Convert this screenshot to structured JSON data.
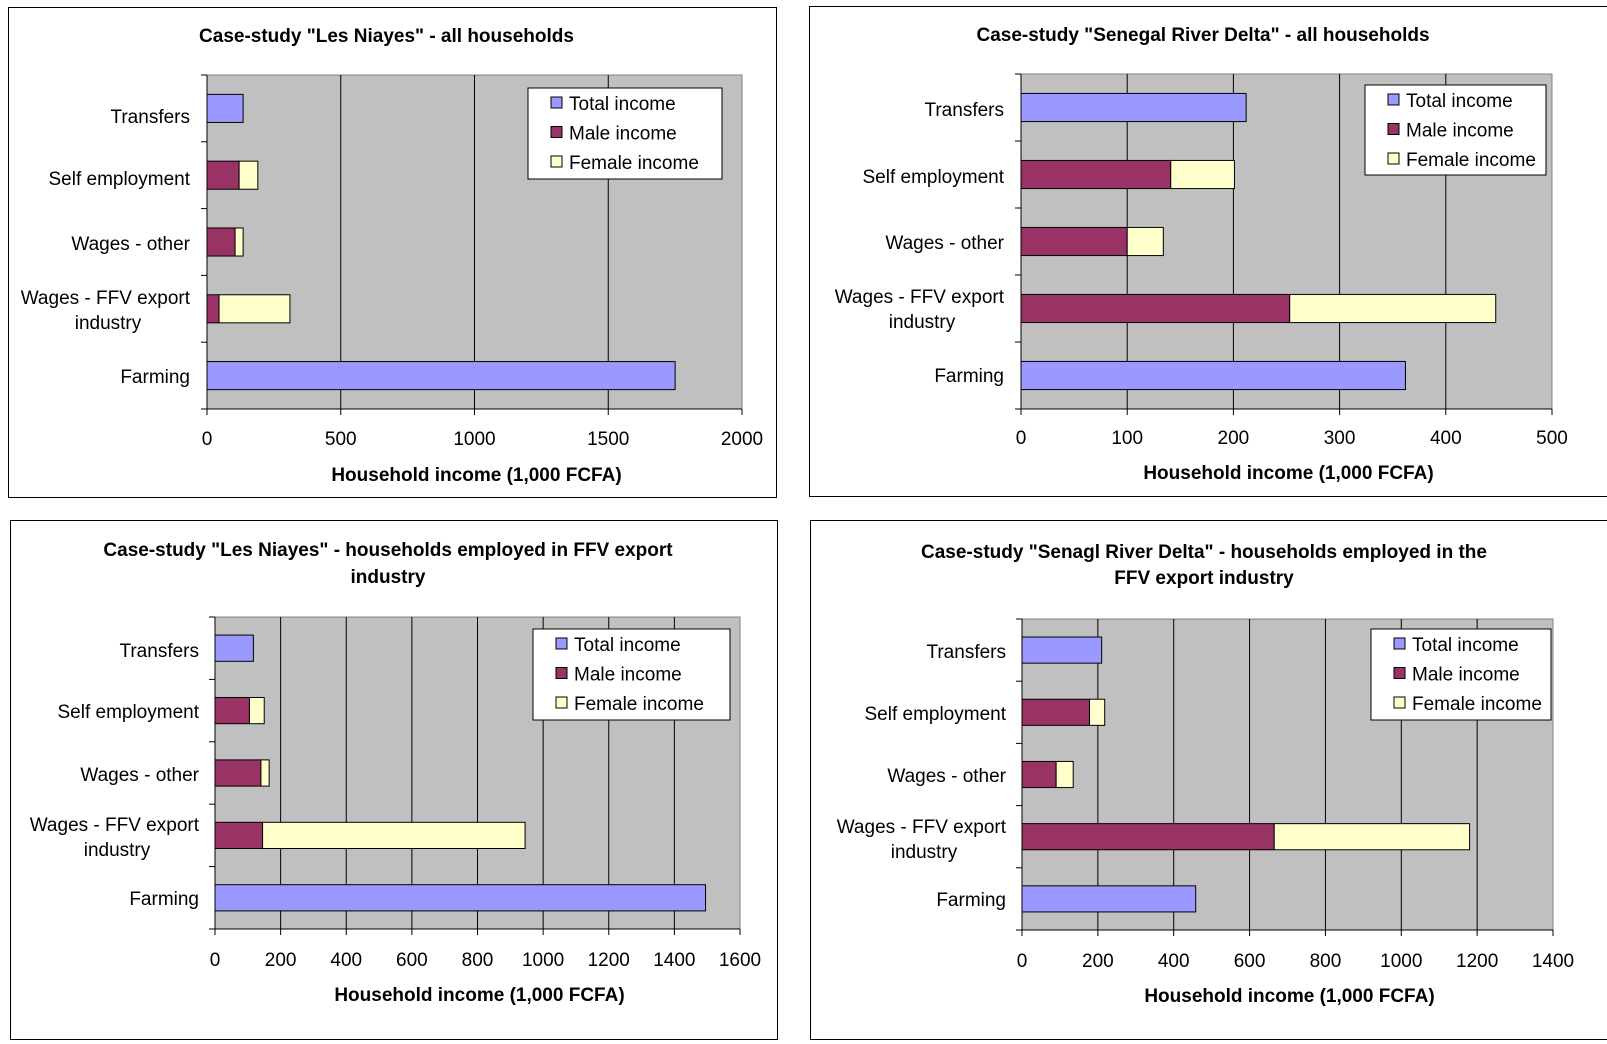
{
  "colors": {
    "plot_bg": "#c0c0c0",
    "gridline": "#000000",
    "total_income": "#9999ff",
    "male_income": "#993366",
    "female_income": "#ffffcc"
  },
  "chart_data": [
    {
      "type": "bar",
      "orientation": "horizontal",
      "stacked": true,
      "title": "Case-study \"Les Niayes\" - all households",
      "xlabel": "Household income (1,000 FCFA)",
      "ylabel": "",
      "xlim": [
        0,
        2000
      ],
      "xticks": [
        "0",
        "500",
        "1000",
        "1500",
        "2000"
      ],
      "categories": [
        "Transfers",
        "Self employment",
        "Wages - other",
        "Wages - FFV export industry",
        "Farming"
      ],
      "legend_position": "top-right",
      "grid": true,
      "series": [
        {
          "name": "Total income",
          "values": [
            135,
            0,
            0,
            0,
            1750
          ]
        },
        {
          "name": "Male income",
          "values": [
            0,
            120,
            105,
            45,
            0
          ]
        },
        {
          "name": "Female income",
          "values": [
            0,
            70,
            30,
            265,
            0
          ]
        }
      ]
    },
    {
      "type": "bar",
      "orientation": "horizontal",
      "stacked": true,
      "title": "Case-study \"Senegal River Delta\" - all households",
      "xlabel": "Household income (1,000 FCFA)",
      "ylabel": "",
      "xlim": [
        0,
        500
      ],
      "xticks": [
        "0",
        "100",
        "200",
        "300",
        "400",
        "500"
      ],
      "categories": [
        "Transfers",
        "Self employment",
        "Wages - other",
        "Wages - FFV export industry",
        "Farming"
      ],
      "legend_position": "top-right",
      "grid": true,
      "series": [
        {
          "name": "Total income",
          "values": [
            212,
            0,
            0,
            0,
            362
          ]
        },
        {
          "name": "Male income",
          "values": [
            0,
            141,
            100,
            253,
            0
          ]
        },
        {
          "name": "Female income",
          "values": [
            0,
            60,
            34,
            194,
            0
          ]
        }
      ]
    },
    {
      "type": "bar",
      "orientation": "horizontal",
      "stacked": true,
      "title": "Case-study \"Les Niayes\" - households employed in FFV export industry",
      "xlabel": "Household income (1,000 FCFA)",
      "ylabel": "",
      "xlim": [
        0,
        1600
      ],
      "xticks": [
        "0",
        "200",
        "400",
        "600",
        "800",
        "1000",
        "1200",
        "1400",
        "1600"
      ],
      "categories": [
        "Transfers",
        "Self employment",
        "Wages - other",
        "Wages - FFV export industry",
        "Farming"
      ],
      "legend_position": "top-right",
      "grid": true,
      "series": [
        {
          "name": "Total income",
          "values": [
            117,
            0,
            0,
            0,
            1495
          ]
        },
        {
          "name": "Male income",
          "values": [
            0,
            105,
            140,
            145,
            0
          ]
        },
        {
          "name": "Female income",
          "values": [
            0,
            45,
            25,
            800,
            0
          ]
        }
      ]
    },
    {
      "type": "bar",
      "orientation": "horizontal",
      "stacked": true,
      "title": "Case-study \"Senagl River Delta\" - households employed in the FFV export industry",
      "xlabel": "Household income (1,000 FCFA)",
      "ylabel": "",
      "xlim": [
        0,
        1400
      ],
      "xticks": [
        "0",
        "200",
        "400",
        "600",
        "800",
        "1000",
        "1200",
        "1400"
      ],
      "categories": [
        "Transfers",
        "Self employment",
        "Wages - other",
        "Wages - FFV export industry",
        "Farming"
      ],
      "legend_position": "top-right",
      "grid": true,
      "series": [
        {
          "name": "Total income",
          "values": [
            210,
            0,
            0,
            0,
            458
          ]
        },
        {
          "name": "Male income",
          "values": [
            0,
            178,
            90,
            665,
            0
          ]
        },
        {
          "name": "Female income",
          "values": [
            0,
            40,
            45,
            515,
            0
          ]
        }
      ]
    }
  ]
}
